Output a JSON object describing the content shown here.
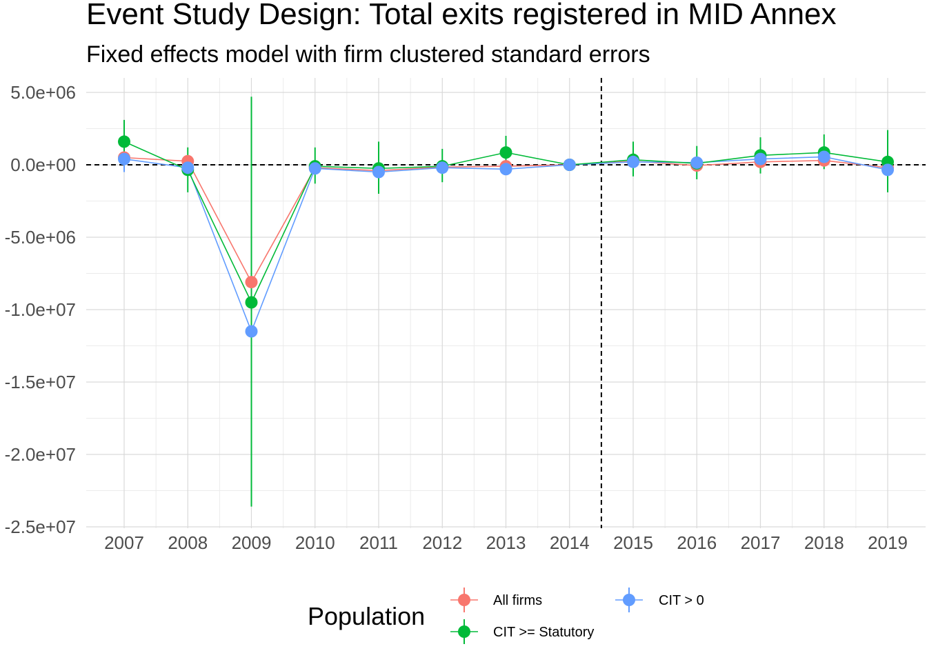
{
  "chart_data": {
    "type": "line",
    "title": "Event Study Design: Total exits registered in MID Annex",
    "subtitle": "Fixed effects model with firm clustered standard errors",
    "xlabel": "",
    "ylabel": "",
    "categories": [
      "2007",
      "2008",
      "2009",
      "2010",
      "2011",
      "2012",
      "2013",
      "2014",
      "2015",
      "2016",
      "2017",
      "2018",
      "2019"
    ],
    "ylim": [
      -25000000,
      5000000
    ],
    "y_ticks": [
      5000000,
      0,
      -5000000,
      -10000000,
      -15000000,
      -20000000,
      -25000000
    ],
    "y_tick_labels": [
      "5.0e+06",
      "0.0e+00",
      "-5.0e+06",
      "-1.0e+07",
      "-1.5e+07",
      "-2.0e+07",
      "-2.5e+07"
    ],
    "reference_lines": {
      "horizontal_y": 0,
      "vertical_between": [
        "2014",
        "2015"
      ]
    },
    "grid": true,
    "legend": {
      "title": "Population",
      "placement": "bottom",
      "entries": [
        "All firms",
        "CIT >= Statutory",
        "CIT > 0"
      ]
    },
    "series": [
      {
        "name": "All firms",
        "color": "#F8766D",
        "values": [
          500000,
          250000,
          -8100000,
          -200000,
          -400000,
          -150000,
          -100000,
          0,
          250000,
          -50000,
          200000,
          300000,
          -200000
        ],
        "ci_low": [
          null,
          null,
          null,
          null,
          null,
          null,
          null,
          null,
          null,
          null,
          null,
          null,
          null
        ],
        "ci_high": [
          null,
          null,
          null,
          null,
          null,
          null,
          null,
          null,
          null,
          null,
          null,
          null,
          null
        ]
      },
      {
        "name": "CIT >= Statutory",
        "color": "#00BA38",
        "values": [
          1600000,
          -350000,
          -9500000,
          -100000,
          -250000,
          -100000,
          850000,
          0,
          350000,
          100000,
          650000,
          850000,
          200000
        ],
        "ci_low": [
          100000,
          -1900000,
          -23600000,
          -1300000,
          -2000000,
          -1200000,
          -300000,
          0,
          -800000,
          -1000000,
          -600000,
          -300000,
          -1900000
        ],
        "ci_high": [
          3100000,
          1200000,
          4700000,
          1200000,
          1600000,
          1100000,
          2000000,
          0,
          1600000,
          1300000,
          1900000,
          2100000,
          2400000
        ]
      },
      {
        "name": "CIT > 0",
        "color": "#619CFF",
        "values": [
          400000,
          -200000,
          -11500000,
          -250000,
          -500000,
          -200000,
          -300000,
          0,
          200000,
          150000,
          400000,
          550000,
          -350000
        ],
        "ci_low": [
          -500000,
          null,
          -22200000,
          null,
          null,
          null,
          null,
          0,
          null,
          null,
          null,
          null,
          null
        ],
        "ci_high": [
          1000000,
          null,
          0,
          null,
          null,
          null,
          null,
          0,
          null,
          null,
          null,
          null,
          null
        ]
      }
    ]
  }
}
